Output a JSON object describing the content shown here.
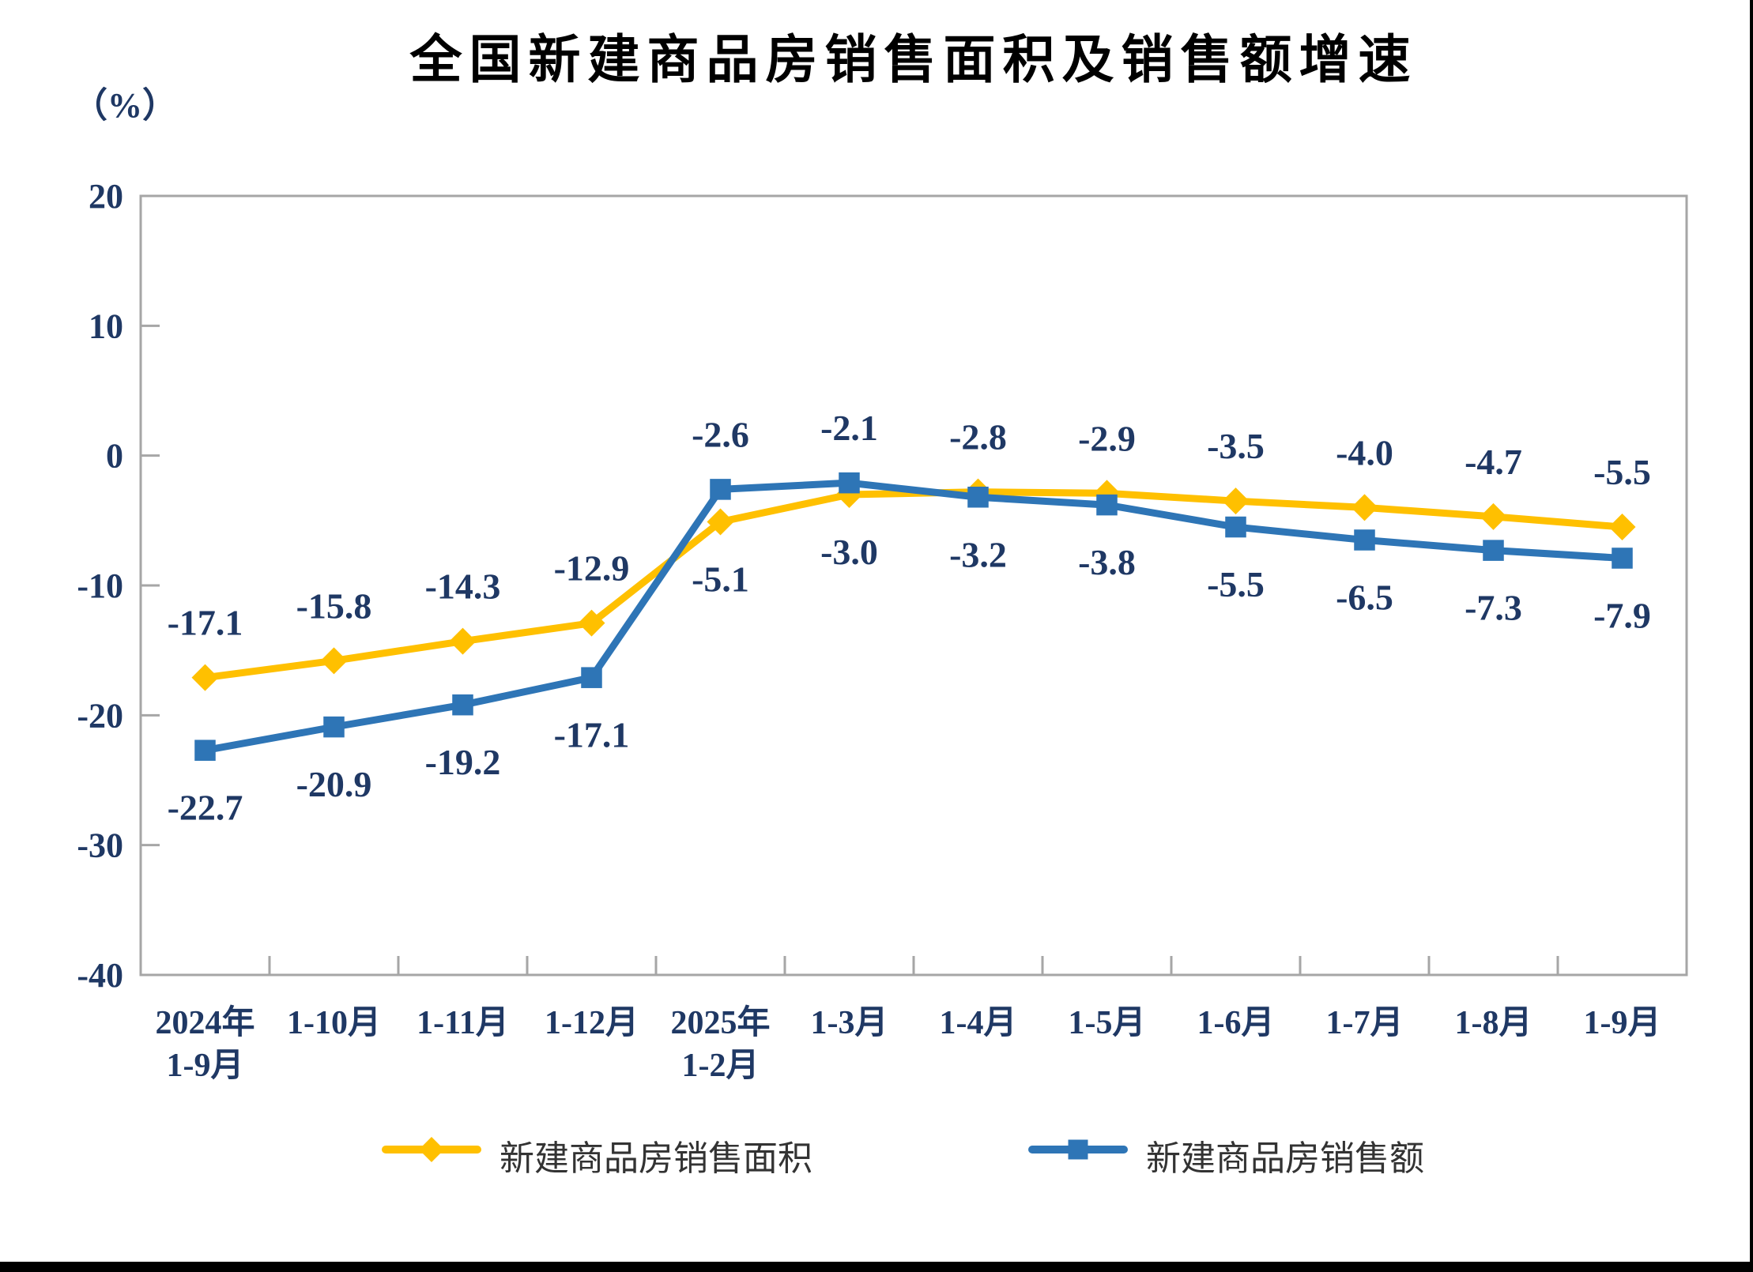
{
  "page": {
    "background": "#ffffff",
    "frame_color": "#000000"
  },
  "chart_data": {
    "type": "line",
    "title": "全国新建商品房销售面积及销售额增速",
    "unit_label": "（%）",
    "categories": [
      [
        "2024年",
        "1-9月"
      ],
      [
        "1-10月"
      ],
      [
        "1-11月"
      ],
      [
        "1-12月"
      ],
      [
        "2025年",
        "1-2月"
      ],
      [
        "1-3月"
      ],
      [
        "1-4月"
      ],
      [
        "1-5月"
      ],
      [
        "1-6月"
      ],
      [
        "1-7月"
      ],
      [
        "1-8月"
      ],
      [
        "1-9月"
      ]
    ],
    "y_axis": {
      "min": -40,
      "max": 20,
      "step": 10,
      "tick_labels": [
        "20",
        "10",
        "0",
        "-10",
        "-20",
        "-30",
        "-40"
      ]
    },
    "series": [
      {
        "name": "新建商品房销售面积",
        "color": "#FFC000",
        "marker": "diamond",
        "values": [
          -17.1,
          -15.8,
          -14.3,
          -12.9,
          -5.1,
          -3.0,
          -2.8,
          -2.9,
          -3.5,
          -4.0,
          -4.7,
          -5.5
        ],
        "labels": [
          "-17.1",
          "-15.8",
          "-14.3",
          "-12.9",
          "-5.1",
          "-3.0",
          "-2.8",
          "-2.9",
          "-3.5",
          "-4.0",
          "-4.7",
          "-5.5"
        ]
      },
      {
        "name": "新建商品房销售额",
        "color": "#2E75B6",
        "marker": "square",
        "values": [
          -22.7,
          -20.9,
          -19.2,
          -17.1,
          -2.6,
          -2.1,
          -3.2,
          -3.8,
          -5.5,
          -6.5,
          -7.3,
          -7.9
        ],
        "labels": [
          "-22.7",
          "-20.9",
          "-19.2",
          "-17.1",
          "-2.6",
          "-2.1",
          "-3.2",
          "-3.8",
          "-5.5",
          "-6.5",
          "-7.3",
          "-7.9"
        ]
      }
    ],
    "label_color": "#1F3864",
    "axis_line_color": "#A6A6A6",
    "grid": false,
    "legend_position": "bottom"
  }
}
